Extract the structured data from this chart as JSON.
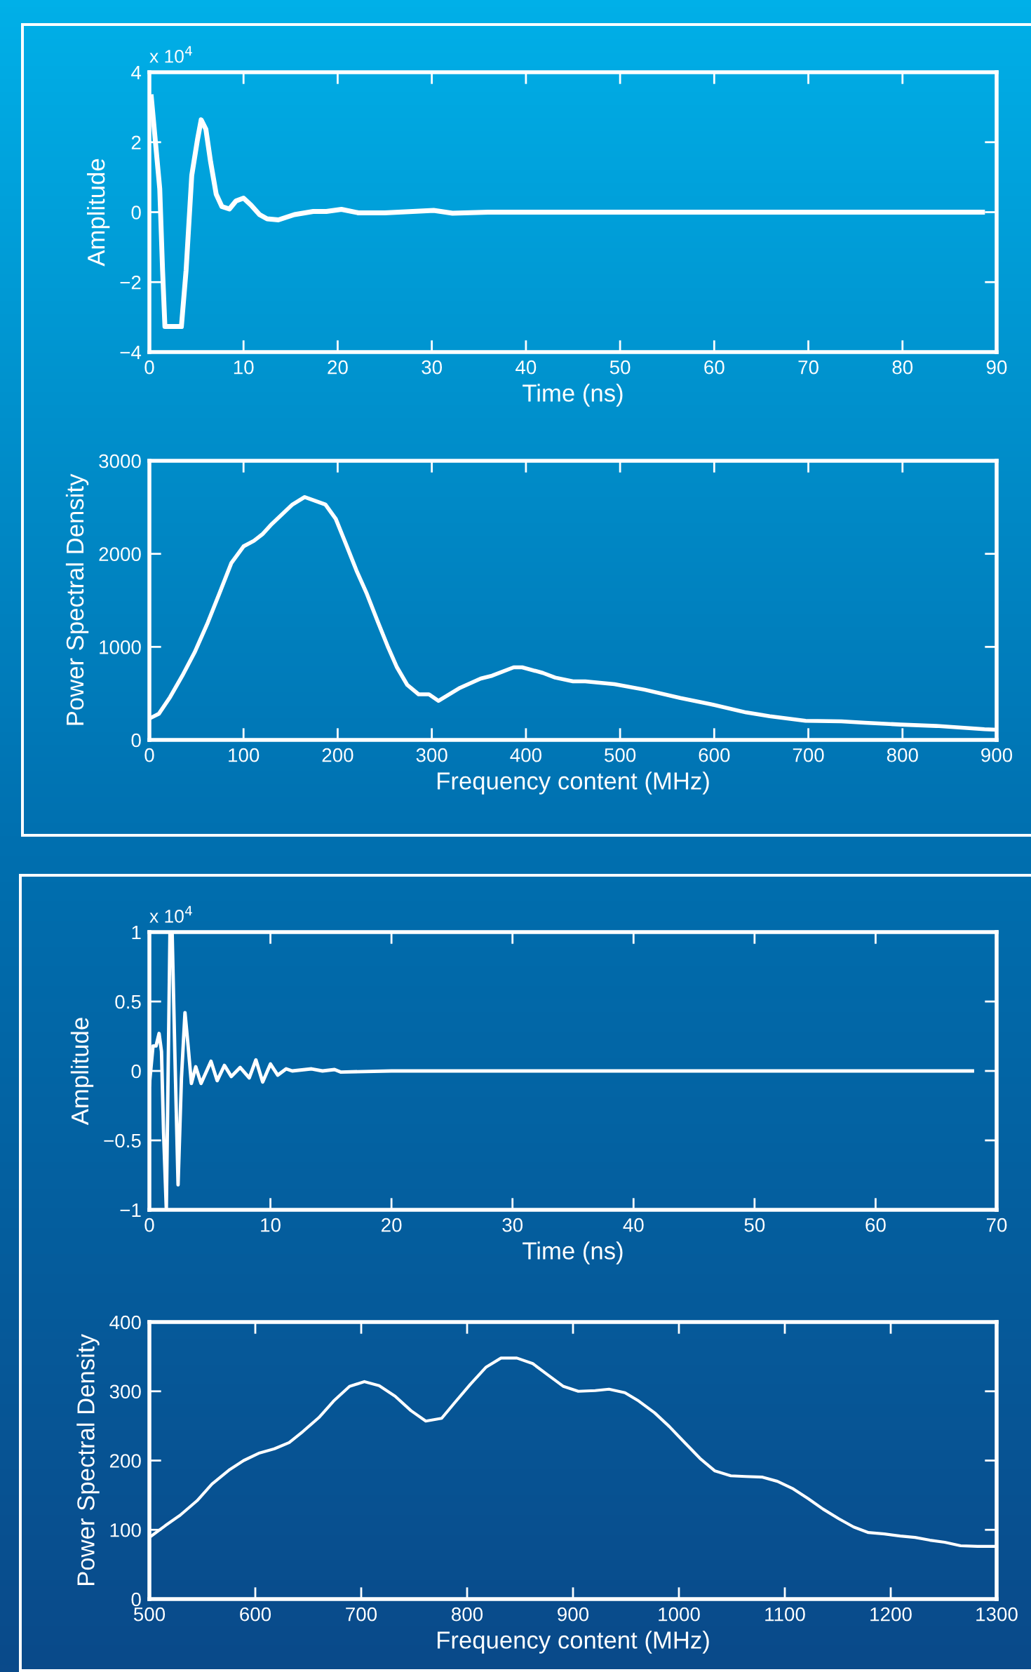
{
  "chart_data": [
    {
      "type": "line",
      "xlabel": "Time (ns)",
      "ylabel": "Amplitude",
      "annotations": [
        "x 10$^{4}$"
      ],
      "xlim": [
        0,
        90
      ],
      "ylim": [
        -4,
        4
      ],
      "xticks": [
        0,
        10,
        20,
        30,
        40,
        50,
        60,
        70,
        80,
        90
      ],
      "yticks": [
        {
          "value": -4,
          "label": "−4"
        },
        {
          "value": -2,
          "label": "−2"
        },
        0,
        2,
        4
      ],
      "grid": false,
      "marker": "none",
      "line_style": "solid",
      "series": [
        {
          "color": "#ffffff",
          "x": [
            0.2,
            1.1,
            1.4,
            1.65,
            3.4,
            3.9,
            4.5,
            5.1,
            5.5,
            6.0,
            6.5,
            7.1,
            7.7,
            8.5,
            9.2,
            10,
            10.8,
            11.7,
            12.5,
            13.7,
            15.4,
            17.4,
            18.8,
            20.4,
            22.2,
            25,
            30.2,
            32.2,
            36,
            40,
            50,
            60,
            70,
            80,
            88.5
          ],
          "values": [
            3.3,
            0.67,
            -1.66,
            -3.27,
            -3.27,
            -1.66,
            1.05,
            2.06,
            2.64,
            2.37,
            1.44,
            0.51,
            0.16,
            0.09,
            0.32,
            0.4,
            0.2,
            -0.07,
            -0.19,
            -0.22,
            -0.07,
            0.02,
            0.02,
            0.08,
            -0.02,
            -0.02,
            0.05,
            -0.03,
            0,
            0,
            0,
            0,
            0,
            0,
            0
          ]
        }
      ]
    },
    {
      "type": "line",
      "xlabel": "Frequency content (MHz)",
      "ylabel": "Power Spectral Density",
      "xlim": [
        0,
        900
      ],
      "ylim": [
        0,
        3000
      ],
      "xticks": [
        0,
        100,
        200,
        300,
        400,
        500,
        600,
        700,
        800,
        900
      ],
      "yticks": [
        0,
        1000,
        2000,
        3000
      ],
      "grid": false,
      "marker": "none",
      "line_style": "solid",
      "series": [
        {
          "color": "#ffffff",
          "x": [
            0,
            10,
            22,
            35,
            48,
            62,
            75,
            87,
            100,
            111,
            120,
            130,
            152,
            165,
            187,
            198,
            209,
            220,
            231,
            243,
            253,
            263,
            274,
            286,
            297,
            307,
            330,
            352,
            364,
            387,
            396,
            418,
            431,
            450,
            463,
            494,
            526,
            564,
            596,
            634,
            659,
            697,
            735,
            760,
            798,
            836,
            887,
            900
          ],
          "values": [
            230,
            280,
            460,
            690,
            940,
            1260,
            1590,
            1900,
            2080,
            2140,
            2210,
            2320,
            2530,
            2610,
            2530,
            2375,
            2100,
            1820,
            1570,
            1260,
            1010,
            780,
            590,
            490,
            490,
            420,
            560,
            660,
            690,
            780,
            780,
            720,
            670,
            630,
            630,
            600,
            540,
            450,
            385,
            295,
            255,
            205,
            200,
            185,
            165,
            150,
            115,
            110
          ]
        }
      ]
    },
    {
      "type": "line",
      "xlabel": "Time (ns)",
      "ylabel": "Amplitude",
      "annotations": [
        "x 10$^{4}$"
      ],
      "xlim": [
        0,
        70
      ],
      "ylim": [
        -1,
        1
      ],
      "xticks": [
        0,
        10,
        20,
        30,
        40,
        50,
        60,
        70
      ],
      "yticks": [
        {
          "value": -1,
          "label": "−1"
        },
        {
          "value": -0.5,
          "label": "−0.5"
        },
        0,
        0.5,
        1
      ],
      "grid": false,
      "marker": "none",
      "line_style": "solid",
      "series": [
        {
          "color": "#ffffff",
          "x": [
            0,
            0.3,
            0.55,
            0.8,
            1.0,
            1.17,
            1.4,
            1.7,
            1.88,
            2.1,
            2.37,
            2.65,
            2.94,
            3.2,
            3.47,
            3.83,
            4.27,
            5.09,
            5.6,
            6.2,
            6.77,
            7.5,
            8.25,
            8.8,
            9.36,
            10.0,
            10.6,
            11.3,
            11.8,
            13.4,
            14.3,
            15.3,
            15.8,
            20,
            30,
            40,
            50,
            60,
            68
          ],
          "values": [
            -0.1,
            0.18,
            0.18,
            0.27,
            0.14,
            -0.44,
            -1,
            1,
            1,
            0.14,
            -0.82,
            -0.05,
            0.42,
            0.18,
            -0.09,
            0.03,
            -0.09,
            0.07,
            -0.07,
            0.04,
            -0.04,
            0.025,
            -0.05,
            0.08,
            -0.08,
            0.05,
            -0.03,
            0.015,
            0,
            0.015,
            0,
            0.01,
            -0.008,
            0,
            0,
            0,
            0,
            0,
            0
          ]
        }
      ]
    },
    {
      "type": "line",
      "xlabel": "Frequency content (MHz)",
      "ylabel": "Power Spectral Density",
      "xlim": [
        500,
        1300
      ],
      "ylim": [
        0,
        400
      ],
      "xticks": [
        500,
        600,
        700,
        800,
        900,
        1000,
        1100,
        1200,
        1300
      ],
      "yticks": [
        0,
        100,
        200,
        300,
        400
      ],
      "grid": false,
      "marker": "none",
      "line_style": "solid",
      "series": [
        {
          "color": "#ffffff",
          "x": [
            500,
            515,
            529,
            545,
            559,
            575,
            589,
            604,
            618,
            632,
            645,
            660,
            674,
            689,
            703,
            717,
            732,
            747,
            761,
            776,
            788,
            803,
            818,
            832,
            847,
            862,
            876,
            891,
            905,
            921,
            934,
            949,
            962,
            977,
            991,
            1006,
            1020,
            1034,
            1049,
            1063,
            1079,
            1093,
            1108,
            1122,
            1136,
            1151,
            1165,
            1179,
            1194,
            1209,
            1223,
            1237,
            1251,
            1266,
            1282,
            1300
          ],
          "values": [
            89,
            106,
            121,
            142,
            166,
            186,
            200,
            211,
            217,
            226,
            242,
            262,
            286,
            307,
            314,
            308,
            293,
            272,
            257,
            261,
            283,
            310,
            335,
            348,
            348,
            340,
            324,
            307,
            300,
            301,
            303,
            298,
            286,
            269,
            249,
            225,
            203,
            185,
            178,
            177,
            176,
            170,
            159,
            145,
            130,
            116,
            104,
            96,
            94,
            91,
            89,
            85,
            82,
            77,
            76,
            76
          ]
        }
      ]
    }
  ]
}
